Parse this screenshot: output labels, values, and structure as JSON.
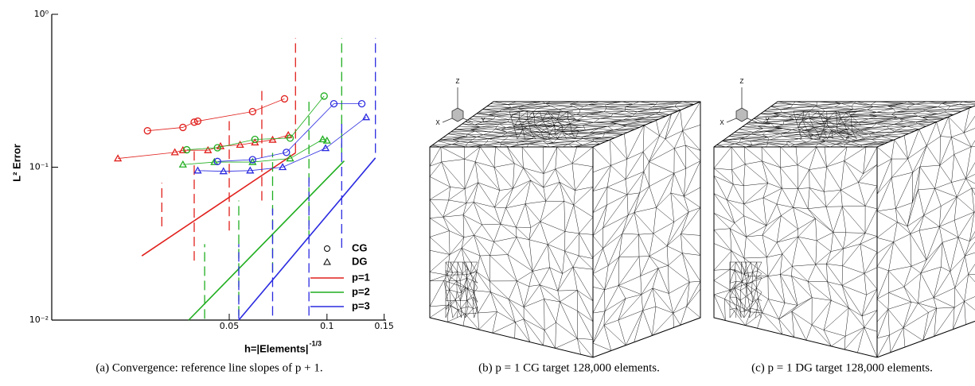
{
  "chart_data": {
    "type": "line",
    "xlabel": "h=|Elements|",
    "xlabel_exponent": "-1/3",
    "ylabel": "L² Error",
    "log_x": true,
    "log_y": true,
    "xlim": [
      0.0142,
      0.152
    ],
    "ylim": [
      0.01,
      1
    ],
    "xticks": [
      0.05,
      0.1,
      0.15
    ],
    "yticks": [
      {
        "value": 0.01,
        "label": "10⁻²"
      },
      {
        "value": 0.1,
        "label": "10⁻¹"
      },
      {
        "value": 1,
        "label": "10⁰"
      }
    ],
    "markers": [
      {
        "name": "CG",
        "shape": "circle"
      },
      {
        "name": "DG",
        "shape": "triangle"
      }
    ],
    "groups": [
      {
        "name": "p=1",
        "color": "#e0201c",
        "line": {
          "x": [
            0.0269,
            0.08
          ],
          "y": [
            0.0263,
            0.124
          ]
        },
        "points": [
          {
            "x": [
              0.028,
              0.036,
              0.039,
              0.04,
              0.059,
              0.074
            ],
            "y": [
              0.173,
              0.182,
              0.197,
              0.2,
              0.231,
              0.28
            ]
          },
          {
            "x": [
              0.0227,
              0.034,
              0.036,
              0.043,
              0.047,
              0.054,
              0.06,
              0.068,
              0.076
            ],
            "y": [
              0.114,
              0.125,
              0.129,
              0.129,
              0.137,
              0.14,
              0.145,
              0.151,
              0.162
            ]
          }
        ],
        "dashes": [
          [
            0.031,
            0.041,
            0.079
          ],
          [
            0.039,
            0.0245,
            0.127
          ],
          [
            0.05,
            0.0385,
            0.2
          ],
          [
            0.063,
            0.0605,
            0.322
          ],
          [
            0.08,
            0.124,
            0.7
          ]
        ]
      },
      {
        "name": "p=2",
        "color": "#1fae1f",
        "line": {
          "x": [
            0.0375,
            0.113
          ],
          "y": [
            0.01,
            0.11
          ]
        },
        "points": [
          {
            "x": [
              0.037,
              0.046,
              0.06,
              0.077,
              0.098
            ],
            "y": [
              0.13,
              0.134,
              0.152,
              0.155,
              0.292
            ]
          },
          {
            "x": [
              0.036,
              0.045,
              0.059,
              0.077,
              0.097,
              0.1
            ],
            "y": [
              0.104,
              0.108,
              0.108,
              0.114,
              0.152,
              0.149
            ]
          }
        ],
        "dashes": [
          [
            0.042,
            0.0102,
            0.0314
          ],
          [
            0.0535,
            0.0107,
            0.0605
          ],
          [
            0.068,
            0.0207,
            0.124
          ],
          [
            0.088,
            0.0334,
            0.286
          ],
          [
            0.111,
            0.124,
            0.7
          ]
        ]
      },
      {
        "name": "p=3",
        "color": "#2a2ae0",
        "line": {
          "x": [
            0.0535,
            0.141
          ],
          "y": [
            0.01,
            0.115
          ]
        },
        "points": [
          {
            "x": [
              0.046,
              0.059,
              0.075,
              0.105,
              0.128
            ],
            "y": [
              0.109,
              0.112,
              0.125,
              0.26,
              0.26
            ]
          },
          {
            "x": [
              0.04,
              0.048,
              0.058,
              0.073,
              0.099,
              0.132
            ],
            "y": [
              0.095,
              0.094,
              0.095,
              0.1,
              0.133,
              0.212
            ]
          }
        ],
        "dashes": [
          [
            0.0535,
            0.0102,
            0.0314
          ],
          [
            0.068,
            0.0107,
            0.0537
          ],
          [
            0.088,
            0.0107,
            0.0867
          ],
          [
            0.111,
            0.0297,
            0.2
          ],
          [
            0.141,
            0.124,
            0.7
          ]
        ]
      }
    ]
  },
  "panels": [
    {
      "triad": [
        "Z",
        "X",
        "Y"
      ]
    },
    {
      "triad": [
        "Z",
        "X",
        "Y"
      ]
    }
  ],
  "captions": [
    "(a) Convergence: reference line slopes of p + 1.",
    "(b) p = 1 CG target 128,000 elements.",
    "(c) p = 1 DG target 128,000 elements."
  ]
}
